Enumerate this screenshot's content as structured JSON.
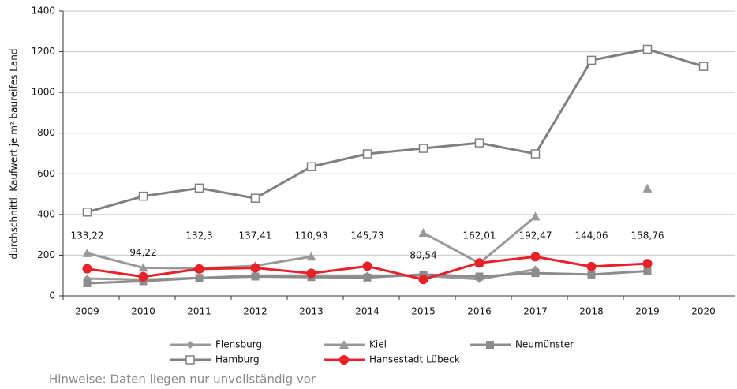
{
  "chart_data": {
    "type": "line",
    "y_label": "durchschnittl. Kaufwert je m² baureifes Land",
    "categories": [
      "2009",
      "2010",
      "2011",
      "2012",
      "2013",
      "2014",
      "2015",
      "2016",
      "2017",
      "2018",
      "2019",
      "2020"
    ],
    "ylim": [
      0,
      1400
    ],
    "yticks": [
      0,
      200,
      400,
      600,
      800,
      1000,
      1200,
      1400
    ],
    "series": [
      {
        "name": "Flensburg",
        "color": "#999999",
        "marker": "diamond",
        "values": [
          85,
          80,
          88,
          100,
          100,
          100,
          100,
          82,
          130,
          null,
          null,
          null
        ]
      },
      {
        "name": "Kiel",
        "color": "#999999",
        "marker": "triangle",
        "values": [
          210,
          138,
          135,
          148,
          193,
          null,
          310,
          160,
          390,
          null,
          528,
          null
        ]
      },
      {
        "name": "Neumünster",
        "color": "#8c8c8c",
        "marker": "square",
        "values": [
          62,
          72,
          88,
          95,
          92,
          90,
          105,
          95,
          112,
          105,
          122,
          null
        ]
      },
      {
        "name": "Hamburg",
        "color": "#808080",
        "marker": "square-open",
        "values": [
          412,
          490,
          530,
          480,
          635,
          698,
          725,
          752,
          698,
          1158,
          1212,
          1128
        ]
      },
      {
        "name": "Hansestadt Lübeck",
        "color": "#e8202a",
        "marker": "circle",
        "values": [
          133.22,
          94.22,
          132.3,
          137.41,
          110.93,
          145.73,
          80.54,
          162.01,
          192.47,
          144.06,
          158.76,
          null
        ],
        "value_labels": [
          "133,22",
          "94,22",
          "132,3",
          "137,41",
          "110,93",
          "145,73",
          "80,54",
          "162,01",
          "192,47",
          "144,06",
          "158,76",
          null
        ]
      }
    ]
  },
  "note": "Hinweise:  Daten liegen nur unvollständig vor"
}
